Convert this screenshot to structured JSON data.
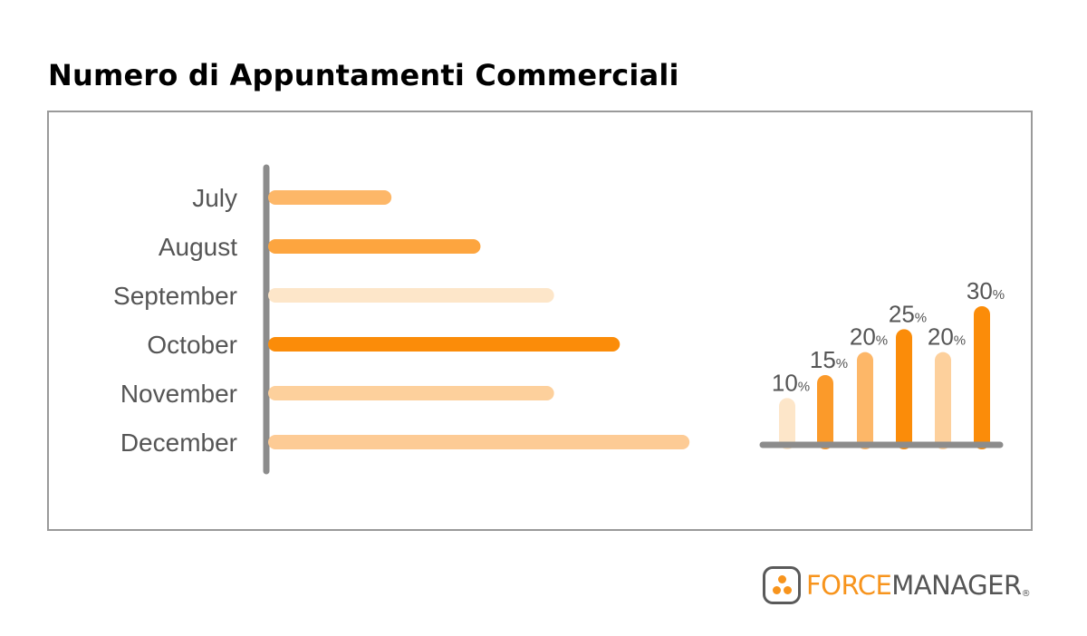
{
  "page": {
    "title": "Numero di Appuntamenti Commerciali"
  },
  "chart_data": [
    {
      "type": "bar",
      "orientation": "horizontal",
      "title": "",
      "xlabel": "",
      "ylabel": "",
      "categories": [
        "July",
        "August",
        "September",
        "October",
        "November",
        "December"
      ],
      "values": [
        30,
        53,
        72,
        89,
        72,
        107
      ],
      "xlim": [
        0,
        110
      ],
      "grid": false,
      "colors": [
        "#fdb768",
        "#fda53f",
        "#fde6c9",
        "#fb8c09",
        "#fdd09c",
        "#fdcb95"
      ]
    },
    {
      "type": "bar",
      "title": "",
      "categories": [
        "",
        "",
        "",
        "",
        "",
        ""
      ],
      "values": [
        10,
        15,
        20,
        25,
        20,
        30
      ],
      "labels": [
        "10",
        "15",
        "20",
        "25",
        "20",
        "30"
      ],
      "unit": "%",
      "ylim": [
        0,
        30
      ],
      "grid": false,
      "colors": [
        "#fde6c9",
        "#fb9a2a",
        "#fdb768",
        "#fb8c09",
        "#fdd09c",
        "#fb8c09"
      ]
    }
  ],
  "colors": {
    "axis": "#8c8c8c",
    "label": "#555555",
    "frame": "#9a9a9a",
    "brand_orange": "#f7941d"
  },
  "logo": {
    "icon": "forcemanager-logo-icon",
    "part1": "FORCE",
    "part2": "MANAGER",
    "reg": "®"
  }
}
